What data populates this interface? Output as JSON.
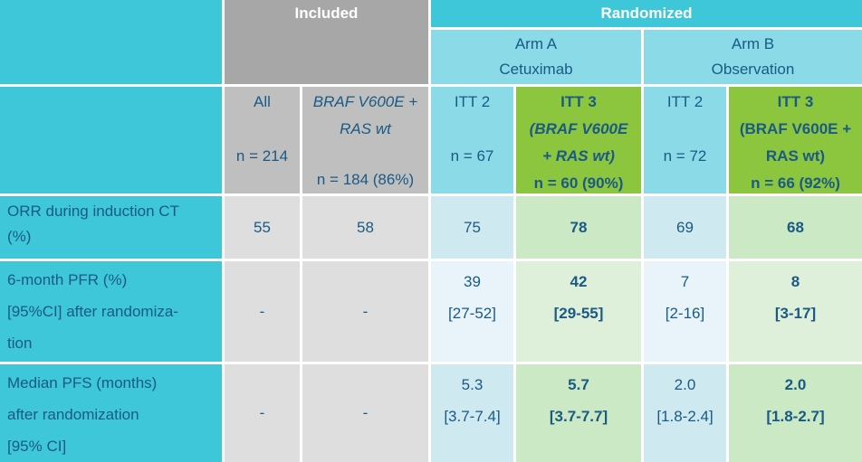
{
  "banner": {
    "included": "Included",
    "randomized": "Randomized"
  },
  "arms": {
    "a": {
      "name": "Arm A",
      "treatment": "Cetuximab"
    },
    "b": {
      "name": "Arm B",
      "treatment": "Observation"
    }
  },
  "columns": {
    "all": {
      "title": "All",
      "n": "n = 214"
    },
    "braf": {
      "title_line1": "BRAF V600E  +",
      "title_line2": "RAS wt",
      "n": "n = 184 (86%)"
    },
    "itt2_a": {
      "title": "ITT 2",
      "n": "n = 67"
    },
    "itt3_a": {
      "title": "ITT 3",
      "subtitle_line1": "(BRAF V600E",
      "subtitle_line2": "+ RAS wt)",
      "n": "n = 60 (90%)"
    },
    "itt2_b": {
      "title": "ITT 2",
      "n": "n = 72"
    },
    "itt3_b": {
      "title": "ITT 3",
      "subtitle_line1": "(BRAF V600E  +",
      "subtitle_line2": "RAS wt)",
      "n": "n = 66  (92%)"
    }
  },
  "rows": [
    {
      "label_lines": [
        "ORR during induction CT",
        "(%)"
      ],
      "values": {
        "all": "55",
        "braf": "58",
        "itt2_a": "75",
        "itt3_a": "78",
        "itt2_b": "69",
        "itt3_b": "68"
      }
    },
    {
      "label_lines": [
        "6-month PFR (%)",
        "[95%CI] after randomiza-",
        "tion"
      ],
      "values": {
        "all": "-",
        "braf": "-",
        "itt2_a": [
          "39",
          "[27-52]"
        ],
        "itt3_a": [
          "42",
          "[29-55]"
        ],
        "itt2_b": [
          "7",
          "[2-16]"
        ],
        "itt3_b": [
          "8",
          "[3-17]"
        ]
      }
    },
    {
      "label_lines": [
        "Median PFS (months)",
        "after randomization",
        "[95% CI]"
      ],
      "values": {
        "all": "-",
        "braf": "-",
        "itt2_a": [
          "5.3",
          "[3.7-7.4]"
        ],
        "itt3_a": [
          "5.7",
          "[3.7-7.7]"
        ],
        "itt2_b": [
          "2.0",
          "[1.8-2.4]"
        ],
        "itt3_b": [
          "2.0",
          "[1.8-2.7]"
        ]
      }
    }
  ],
  "colors": {
    "teal": "#3ec7d9",
    "light_blue": "#8adae8",
    "green_header": "#8cc63e",
    "dark_gray_header": "#a7a7a7",
    "mid_gray_header": "#bfbfbf",
    "light_gray_data": "#dedede",
    "blue_data": "#cfe9f1",
    "blue_data_pale": "#e8f4f9",
    "green_data": "#cbe9c5",
    "green_data_pale": "#dff0da",
    "text_navy": "#1a5a84",
    "text_white": "#ffffff"
  },
  "chart_data": {
    "type": "table",
    "title": "",
    "column_groups": [
      "Included",
      "Randomized Arm A Cetuximab",
      "Randomized Arm B Observation"
    ],
    "columns": [
      "All (n = 214)",
      "BRAF V600E + RAS wt (n = 184 (86%))",
      "Arm A Cetuximab ITT 2 (n = 67)",
      "Arm A Cetuximab ITT 3 (BRAF V600E + RAS wt) (n = 60 (90%))",
      "Arm B Observation ITT 2 (n = 72)",
      "Arm B Observation ITT 3 (BRAF V600E + RAS wt) (n = 66 (92%))"
    ],
    "rows": [
      {
        "label": "ORR during induction CT (%)",
        "values": [
          "55",
          "58",
          "75",
          "78",
          "69",
          "68"
        ]
      },
      {
        "label": "6-month PFR (%) [95%CI] after randomization",
        "values": [
          "-",
          "-",
          "39 [27-52]",
          "42 [29-55]",
          "7 [2-16]",
          "8 [3-17]"
        ]
      },
      {
        "label": "Median PFS (months) after randomization [95% CI]",
        "values": [
          "-",
          "-",
          "5.3 [3.7-7.4]",
          "5.7 [3.7-7.7]",
          "2.0 [1.8-2.4]",
          "2.0 [1.8-2.7]"
        ]
      }
    ]
  }
}
